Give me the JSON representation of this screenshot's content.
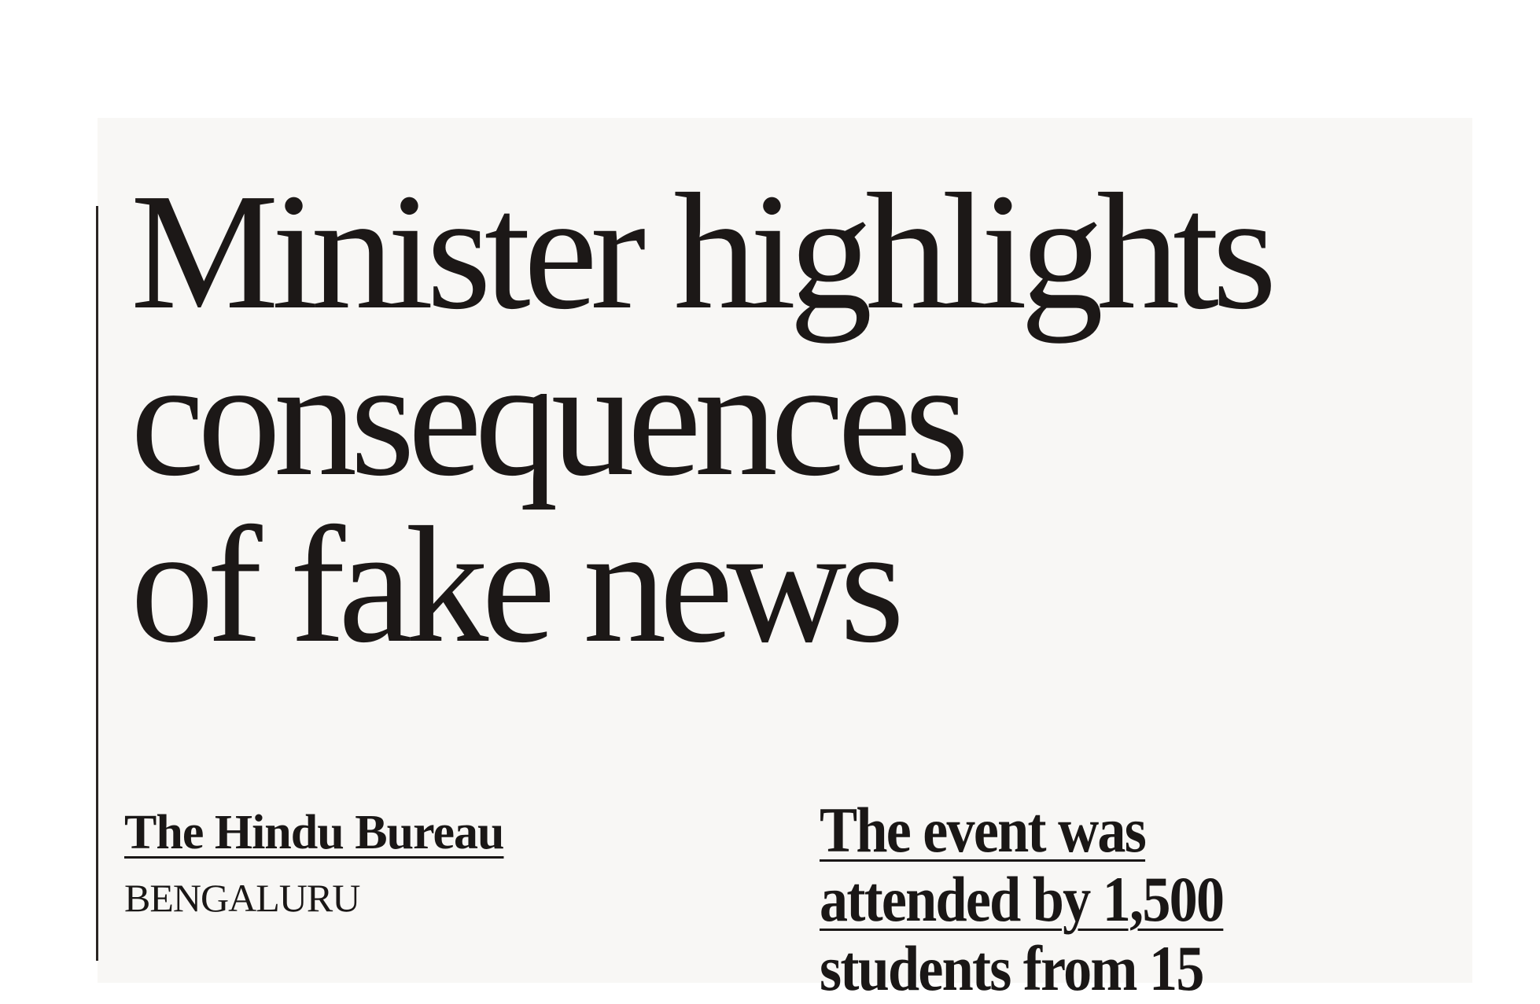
{
  "article": {
    "headline_lines": [
      "Minister highlights",
      "consequences",
      "of fake news"
    ],
    "byline": "The Hindu Bureau",
    "dateline": "BENGALURU",
    "pull_quote_lines": [
      "The event was",
      "attended by 1,500",
      "students from 15"
    ]
  }
}
